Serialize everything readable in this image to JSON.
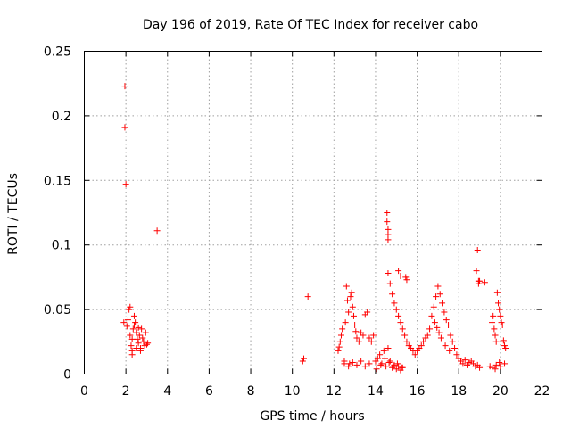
{
  "chart_data": {
    "type": "scatter",
    "title": "Day 196 of 2019, Rate Of TEC Index for receiver cabo",
    "xlabel": "GPS time / hours",
    "ylabel": "ROTI / TECUs",
    "xlim": [
      0,
      22
    ],
    "ylim": [
      0,
      0.25
    ],
    "xticks": [
      0,
      2,
      4,
      6,
      8,
      10,
      12,
      14,
      16,
      18,
      20,
      22
    ],
    "xtick_labels": [
      "0",
      "2",
      "4",
      "6",
      "8",
      "10",
      "12",
      "14",
      "16",
      "18",
      "20",
      "22"
    ],
    "yticks": [
      0,
      0.05,
      0.1,
      0.15,
      0.2,
      0.25
    ],
    "ytick_labels": [
      "0",
      "0.05",
      "0.1",
      "0.15",
      "0.2",
      "0.25"
    ],
    "grid": true,
    "marker": "+",
    "color": "#ff0000",
    "series": [
      {
        "name": "ROTI",
        "x": [
          1.9,
          1.95,
          1.95,
          2.0,
          2.05,
          2.1,
          2.15,
          2.2,
          2.2,
          2.25,
          2.3,
          2.3,
          2.35,
          2.4,
          2.45,
          2.5,
          2.55,
          2.6,
          2.65,
          2.7,
          2.75,
          2.8,
          2.85,
          2.9,
          2.95,
          3.0,
          3.05,
          2.3,
          2.4,
          2.5,
          2.6,
          2.7,
          3.5,
          10.5,
          10.55,
          10.75,
          12.2,
          12.25,
          12.3,
          12.35,
          12.4,
          12.5,
          12.55,
          12.6,
          12.65,
          12.7,
          12.75,
          12.8,
          12.85,
          12.9,
          12.95,
          13.0,
          13.05,
          13.1,
          13.2,
          13.3,
          13.4,
          13.5,
          13.6,
          13.7,
          13.8,
          13.9,
          12.5,
          12.7,
          12.9,
          13.1,
          13.3,
          13.5,
          13.7,
          14.0,
          14.1,
          14.2,
          14.3,
          14.4,
          14.5,
          14.6,
          14.7,
          14.8,
          14.9,
          15.0,
          15.1,
          15.2,
          15.3,
          14.05,
          14.25,
          14.45,
          14.65,
          14.85,
          15.05,
          15.25,
          14.55,
          14.55,
          14.6,
          14.6,
          14.6,
          14.6,
          14.7,
          14.8,
          14.9,
          15.0,
          15.1,
          15.2,
          15.3,
          15.4,
          15.5,
          15.6,
          15.7,
          15.8,
          15.1,
          15.2,
          15.45,
          15.5,
          15.9,
          16.0,
          16.1,
          16.2,
          16.3,
          16.4,
          16.5,
          16.6,
          16.7,
          16.8,
          16.9,
          17.0,
          17.1,
          17.2,
          17.3,
          17.4,
          17.5,
          17.6,
          17.7,
          17.8,
          17.9,
          16.85,
          16.95,
          17.05,
          17.15,
          17.35,
          17.55,
          18.0,
          18.1,
          18.2,
          18.3,
          18.4,
          18.5,
          18.6,
          18.7,
          18.8,
          18.9,
          19.0,
          18.85,
          18.9,
          18.95,
          18.95,
          19.0,
          19.25,
          19.5,
          19.6,
          19.65,
          19.7,
          19.75,
          19.8,
          19.85,
          19.9,
          19.95,
          20.0,
          20.05,
          20.1,
          20.15,
          20.2,
          20.25,
          19.6,
          19.8,
          20.0,
          20.2,
          19.75,
          19.95
        ],
        "y": [
          0.04,
          0.223,
          0.191,
          0.147,
          0.037,
          0.042,
          0.05,
          0.052,
          0.03,
          0.022,
          0.018,
          0.015,
          0.035,
          0.045,
          0.04,
          0.032,
          0.027,
          0.024,
          0.03,
          0.02,
          0.035,
          0.028,
          0.025,
          0.022,
          0.032,
          0.023,
          0.024,
          0.027,
          0.038,
          0.02,
          0.036,
          0.018,
          0.111,
          0.01,
          0.012,
          0.06,
          0.018,
          0.021,
          0.025,
          0.03,
          0.035,
          0.01,
          0.04,
          0.068,
          0.057,
          0.048,
          0.008,
          0.06,
          0.063,
          0.052,
          0.045,
          0.038,
          0.033,
          0.028,
          0.025,
          0.032,
          0.03,
          0.046,
          0.048,
          0.028,
          0.025,
          0.03,
          0.008,
          0.006,
          0.009,
          0.007,
          0.01,
          0.006,
          0.008,
          0.01,
          0.012,
          0.015,
          0.008,
          0.018,
          0.006,
          0.02,
          0.01,
          0.005,
          0.007,
          0.004,
          0.006,
          0.003,
          0.005,
          0.004,
          0.007,
          0.012,
          0.009,
          0.006,
          0.008,
          0.005,
          0.125,
          0.118,
          0.112,
          0.108,
          0.104,
          0.078,
          0.07,
          0.062,
          0.055,
          0.05,
          0.045,
          0.04,
          0.035,
          0.03,
          0.025,
          0.022,
          0.02,
          0.018,
          0.08,
          0.076,
          0.075,
          0.073,
          0.015,
          0.018,
          0.02,
          0.022,
          0.025,
          0.028,
          0.03,
          0.035,
          0.045,
          0.052,
          0.06,
          0.068,
          0.062,
          0.055,
          0.048,
          0.042,
          0.038,
          0.03,
          0.025,
          0.02,
          0.015,
          0.04,
          0.036,
          0.032,
          0.028,
          0.022,
          0.018,
          0.012,
          0.01,
          0.008,
          0.011,
          0.007,
          0.009,
          0.01,
          0.008,
          0.006,
          0.007,
          0.005,
          0.08,
          0.096,
          0.072,
          0.07,
          0.072,
          0.071,
          0.006,
          0.04,
          0.045,
          0.035,
          0.03,
          0.025,
          0.063,
          0.055,
          0.05,
          0.045,
          0.04,
          0.038,
          0.026,
          0.022,
          0.02,
          0.005,
          0.007,
          0.006,
          0.008,
          0.004,
          0.009
        ]
      }
    ]
  }
}
